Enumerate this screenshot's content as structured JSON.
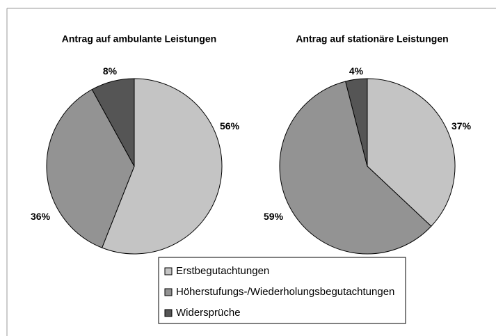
{
  "chart_data": [
    {
      "type": "pie",
      "title": "Antrag auf ambulante Leistungen",
      "categories": [
        "Erstbegutachtungen",
        "Höherstufungs-/Wiederholungsbegutachtungen",
        "Widersprüche"
      ],
      "values": [
        56,
        36,
        8
      ],
      "colors": [
        "#c4c4c4",
        "#939393",
        "#555555"
      ]
    },
    {
      "type": "pie",
      "title": "Antrag auf stationäre Leistungen",
      "categories": [
        "Erstbegutachtungen",
        "Höherstufungs-/Wiederholungsbegutachtungen",
        "Widersprüche"
      ],
      "values": [
        37,
        59,
        4
      ],
      "colors": [
        "#c4c4c4",
        "#939393",
        "#555555"
      ]
    }
  ]
}
